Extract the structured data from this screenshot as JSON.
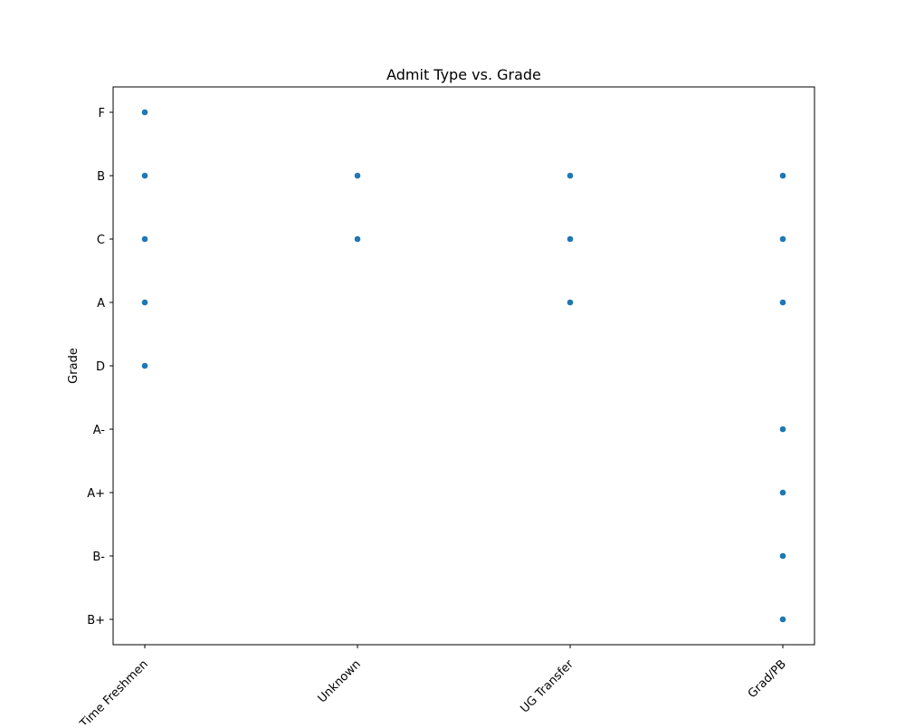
{
  "chart_data": {
    "type": "scatter",
    "title": "Admit Type vs. Grade",
    "xlabel": "",
    "ylabel": "Grade",
    "x_categories": [
      "Time Freshmen",
      "Unknown",
      "UG Transfer",
      "Grad/PB"
    ],
    "y_categories": [
      "F",
      "B",
      "C",
      "A",
      "D",
      "A-",
      "A+",
      "B-",
      "B+"
    ],
    "grid": false,
    "marker_color": "#1f77b4",
    "points": [
      {
        "x": "Time Freshmen",
        "y": "F"
      },
      {
        "x": "Time Freshmen",
        "y": "B"
      },
      {
        "x": "Time Freshmen",
        "y": "C"
      },
      {
        "x": "Time Freshmen",
        "y": "A"
      },
      {
        "x": "Time Freshmen",
        "y": "D"
      },
      {
        "x": "Unknown",
        "y": "B"
      },
      {
        "x": "Unknown",
        "y": "C"
      },
      {
        "x": "UG Transfer",
        "y": "B"
      },
      {
        "x": "UG Transfer",
        "y": "C"
      },
      {
        "x": "UG Transfer",
        "y": "A"
      },
      {
        "x": "Grad/PB",
        "y": "B"
      },
      {
        "x": "Grad/PB",
        "y": "C"
      },
      {
        "x": "Grad/PB",
        "y": "A"
      },
      {
        "x": "Grad/PB",
        "y": "A-"
      },
      {
        "x": "Grad/PB",
        "y": "A+"
      },
      {
        "x": "Grad/PB",
        "y": "B-"
      },
      {
        "x": "Grad/PB",
        "y": "B+"
      }
    ]
  }
}
